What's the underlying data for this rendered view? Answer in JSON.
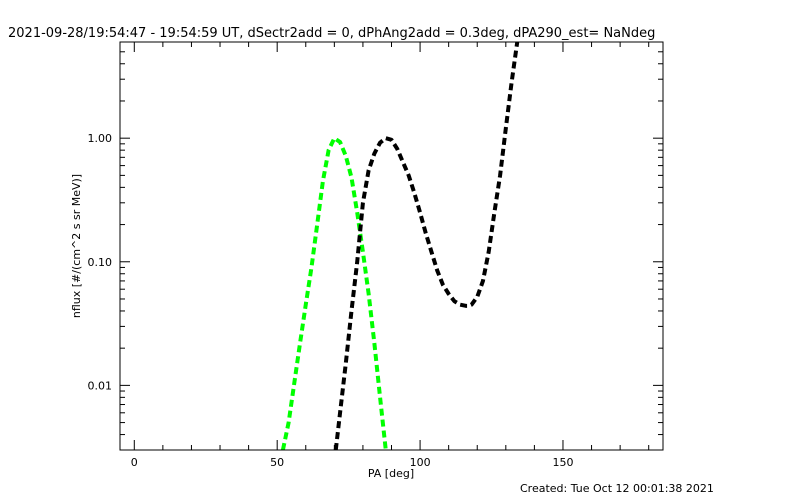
{
  "chart_data": {
    "type": "line",
    "title": "2021-09-28/19:54:47 - 19:54:59 UT, dSectr2add = 0, dPhAng2add = 0.3deg, dPA290_est=  NaNdeg",
    "xlabel": "PA [deg]",
    "ylabel": "nflux [#/(cm^2 s sr MeV)]",
    "xlim": [
      -5,
      185
    ],
    "ylim": [
      0.003,
      6
    ],
    "y_scale": "log",
    "x_ticks": [
      0,
      50,
      100,
      150
    ],
    "x_tick_labels": [
      "0",
      "50",
      "100",
      "150"
    ],
    "y_ticks": [
      0.01,
      0.1,
      1.0
    ],
    "y_tick_labels": [
      "0.01",
      "0.10",
      "1.00"
    ],
    "grid": false,
    "series": [
      {
        "color": "#00ff00",
        "style": "dashed",
        "x": [
          52,
          54,
          56,
          58,
          60,
          62,
          64,
          66,
          68,
          70,
          72,
          74,
          76,
          78,
          80,
          82,
          84,
          86,
          88
        ],
        "y": [
          0.003,
          0.005,
          0.0105,
          0.022,
          0.045,
          0.09,
          0.2,
          0.45,
          0.8,
          1.0,
          0.93,
          0.72,
          0.48,
          0.25,
          0.12,
          0.055,
          0.022,
          0.008,
          0.003
        ]
      },
      {
        "color": "#000000",
        "style": "dashed",
        "x": [
          70.5,
          72,
          74,
          76,
          78,
          80,
          82,
          84,
          86,
          88,
          90,
          92,
          94,
          96,
          98,
          100,
          102,
          104,
          106,
          108,
          110,
          112,
          114,
          116,
          117,
          118,
          120,
          122,
          124,
          126,
          128,
          130,
          132,
          134
        ],
        "y": [
          0.003,
          0.006,
          0.015,
          0.04,
          0.1,
          0.3,
          0.55,
          0.75,
          0.92,
          1.0,
          0.97,
          0.82,
          0.64,
          0.5,
          0.36,
          0.25,
          0.17,
          0.12,
          0.085,
          0.065,
          0.055,
          0.048,
          0.045,
          0.044,
          0.044,
          0.045,
          0.052,
          0.07,
          0.12,
          0.25,
          0.5,
          1.2,
          2.8,
          6.0
        ]
      }
    ]
  },
  "footer": {
    "created": "Created: Tue Oct 12 00:01:38 2021"
  }
}
